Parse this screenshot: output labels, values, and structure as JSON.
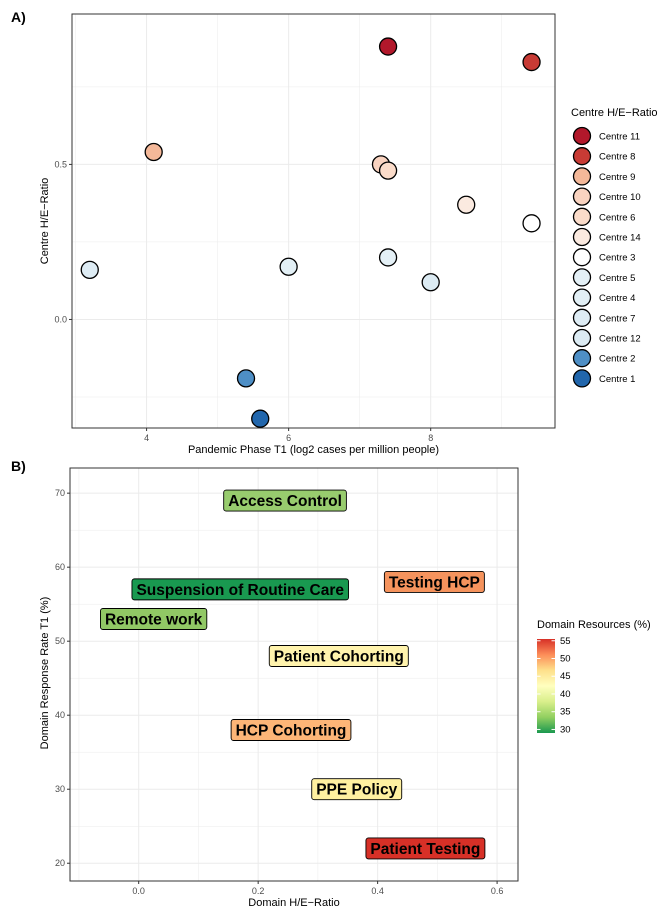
{
  "chart_data": [
    {
      "panel": "A)",
      "type": "scatter",
      "xlabel": "Pandemic Phase T1 (log2 cases per million people)",
      "ylabel": "Centre H/E−Ratio",
      "xlim": [
        2.95,
        9.75
      ],
      "ylim": [
        -0.35,
        0.985
      ],
      "x_ticks": [
        4,
        6,
        8
      ],
      "y_ticks": [
        0.0,
        0.5
      ],
      "y_tick_labels": [
        "0.0",
        "0.5"
      ],
      "grid": true,
      "legend": {
        "title": "Centre H/E−Ratio",
        "placement": "right",
        "entries": [
          {
            "name": "Centre 11",
            "color": "#b2182b"
          },
          {
            "name": "Centre 8",
            "color": "#c83b35"
          },
          {
            "name": "Centre 9",
            "color": "#f4b899"
          },
          {
            "name": "Centre 10",
            "color": "#f9d3c0"
          },
          {
            "name": "Centre 6",
            "color": "#fbdcca"
          },
          {
            "name": "Centre 14",
            "color": "#fbeae0"
          },
          {
            "name": "Centre 3",
            "color": "#ffffff"
          },
          {
            "name": "Centre 5",
            "color": "#e4f0f6"
          },
          {
            "name": "Centre 4",
            "color": "#e2eff5"
          },
          {
            "name": "Centre 7",
            "color": "#deecf4"
          },
          {
            "name": "Centre 12",
            "color": "#dcebf3"
          },
          {
            "name": "Centre 2",
            "color": "#4e8fc6"
          },
          {
            "name": "Centre 1",
            "color": "#2166ac"
          }
        ]
      },
      "points": [
        {
          "centre": "Centre 11",
          "x": 7.4,
          "y": 0.88,
          "color": "#b2182b"
        },
        {
          "centre": "Centre 8",
          "x": 9.42,
          "y": 0.83,
          "color": "#c83b35"
        },
        {
          "centre": "Centre 9",
          "x": 4.1,
          "y": 0.54,
          "color": "#f4b899"
        },
        {
          "centre": "Centre 10",
          "x": 7.3,
          "y": 0.5,
          "color": "#f9d3c0"
        },
        {
          "centre": "Centre 6",
          "x": 7.4,
          "y": 0.48,
          "color": "#fbdcca"
        },
        {
          "centre": "Centre 14",
          "x": 8.5,
          "y": 0.37,
          "color": "#fbeae0"
        },
        {
          "centre": "Centre 3",
          "x": 9.42,
          "y": 0.31,
          "color": "#ffffff"
        },
        {
          "centre": "Centre 5",
          "x": 7.4,
          "y": 0.2,
          "color": "#e4f0f6"
        },
        {
          "centre": "Centre 4",
          "x": 6.0,
          "y": 0.17,
          "color": "#e2eff5"
        },
        {
          "centre": "Centre 7",
          "x": 3.2,
          "y": 0.16,
          "color": "#deecf4"
        },
        {
          "centre": "Centre 12",
          "x": 8.0,
          "y": 0.12,
          "color": "#dcebf3"
        },
        {
          "centre": "Centre 2",
          "x": 5.4,
          "y": -0.19,
          "color": "#4e8fc6"
        },
        {
          "centre": "Centre 1",
          "x": 5.6,
          "y": -0.32,
          "color": "#2166ac"
        }
      ]
    },
    {
      "panel": "B)",
      "type": "scatter",
      "xlabel": "Domain H/E−Ratio",
      "ylabel": "Domain Response Rate T1 (%)",
      "xlim": [
        -0.115,
        0.635
      ],
      "ylim": [
        17.6,
        73.4
      ],
      "x_ticks": [
        0.0,
        0.2,
        0.4,
        0.6
      ],
      "x_tick_labels": [
        "0.0",
        "0.2",
        "0.4",
        "0.6"
      ],
      "y_ticks": [
        20,
        30,
        40,
        50,
        60,
        70
      ],
      "grid": true,
      "legend": {
        "title": "Domain Resources (%)",
        "placement": "right",
        "type": "colorbar",
        "range": [
          29,
          55.5
        ],
        "ticks": [
          30,
          35,
          40,
          45,
          50,
          55
        ],
        "colors": [
          "#1a9850",
          "#91cf60",
          "#d9ef8b",
          "#ffffbf",
          "#fee08b",
          "#fc8d59",
          "#d73027"
        ]
      },
      "labels": [
        {
          "text": "Access Control",
          "x": 0.245,
          "y": 69,
          "color": "#98cc6e"
        },
        {
          "text": "Suspension of Routine Care",
          "x": 0.17,
          "y": 57,
          "color": "#199950"
        },
        {
          "text": "Testing HCP",
          "x": 0.495,
          "y": 58,
          "color": "#f5935d"
        },
        {
          "text": "Remote work",
          "x": 0.025,
          "y": 53,
          "color": "#91c865"
        },
        {
          "text": "Patient Cohorting",
          "x": 0.335,
          "y": 48,
          "color": "#fff3ad"
        },
        {
          "text": "HCP Cohorting",
          "x": 0.255,
          "y": 38,
          "color": "#fdb577"
        },
        {
          "text": "PPE Policy",
          "x": 0.365,
          "y": 30,
          "color": "#fff0a0"
        },
        {
          "text": "Patient Testing",
          "x": 0.48,
          "y": 22,
          "color": "#d73027"
        }
      ]
    }
  ]
}
